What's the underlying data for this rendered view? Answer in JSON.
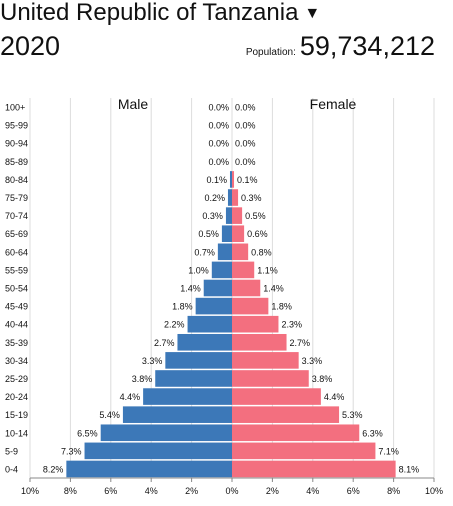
{
  "header": {
    "country": "United Republic of Tanzania",
    "caret": "▼",
    "year": "2020",
    "population_label": "Population:",
    "population_value": "59,734,212"
  },
  "colors": {
    "male": "#3c78b8",
    "female": "#f36f7f",
    "grid": "#dcdcdc"
  },
  "chart_data": {
    "type": "bar",
    "orientation": "horizontal",
    "subtype": "population-pyramid",
    "legend": {
      "male": "Male",
      "female": "Female"
    },
    "categories": [
      "100+",
      "95-99",
      "90-94",
      "85-89",
      "80-84",
      "75-79",
      "70-74",
      "65-69",
      "60-64",
      "55-59",
      "50-54",
      "45-49",
      "40-44",
      "35-39",
      "30-34",
      "25-29",
      "20-24",
      "15-19",
      "10-14",
      "5-9",
      "0-4"
    ],
    "series": [
      {
        "name": "Male",
        "values": [
          0.0,
          0.0,
          0.0,
          0.0,
          0.1,
          0.2,
          0.3,
          0.5,
          0.7,
          1.0,
          1.4,
          1.8,
          2.2,
          2.7,
          3.3,
          3.8,
          4.4,
          5.4,
          6.5,
          7.3,
          8.2
        ],
        "labels": [
          "0.0%",
          "0.0%",
          "0.0%",
          "0.0%",
          "0.1%",
          "0.2%",
          "0.3%",
          "0.5%",
          "0.7%",
          "1.0%",
          "1.4%",
          "1.8%",
          "2.2%",
          "2.7%",
          "3.3%",
          "3.8%",
          "4.4%",
          "5.4%",
          "6.5%",
          "7.3%",
          "8.2%"
        ]
      },
      {
        "name": "Female",
        "values": [
          0.0,
          0.0,
          0.0,
          0.0,
          0.1,
          0.3,
          0.5,
          0.6,
          0.8,
          1.1,
          1.4,
          1.8,
          2.3,
          2.7,
          3.3,
          3.8,
          4.4,
          5.3,
          6.3,
          7.1,
          8.1
        ],
        "labels": [
          "0.0%",
          "0.0%",
          "0.0%",
          "0.0%",
          "0.1%",
          "0.3%",
          "0.5%",
          "0.6%",
          "0.8%",
          "1.1%",
          "1.4%",
          "1.8%",
          "2.3%",
          "2.7%",
          "3.3%",
          "3.8%",
          "4.4%",
          "5.3%",
          "6.3%",
          "7.1%",
          "8.1%"
        ]
      }
    ],
    "xlim": [
      -10,
      10
    ],
    "xticks": [
      -10,
      -8,
      -6,
      -4,
      -2,
      0,
      2,
      4,
      6,
      8,
      10
    ],
    "xtick_labels": [
      "10%",
      "8%",
      "6%",
      "4%",
      "2%",
      "0%",
      "2%",
      "4%",
      "6%",
      "8%",
      "10%"
    ],
    "grid": true
  }
}
